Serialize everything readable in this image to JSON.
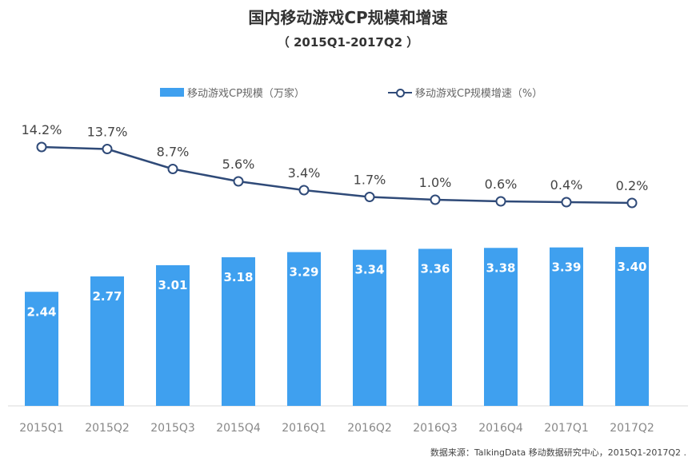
{
  "chart_data": {
    "type": "bar",
    "title": "国内移动游戏CP规模和增速",
    "subtitle": "（ 2015Q1-2017Q2 ）",
    "categories": [
      "2015Q1",
      "2015Q2",
      "2015Q3",
      "2015Q4",
      "2016Q1",
      "2016Q2",
      "2016Q3",
      "2016Q4",
      "2017Q1",
      "2017Q2"
    ],
    "series": [
      {
        "name": "移动游戏CP规模（万家）",
        "kind": "bar",
        "color": "#3fa0ef",
        "values": [
          2.44,
          2.77,
          3.01,
          3.18,
          3.29,
          3.34,
          3.36,
          3.38,
          3.39,
          3.4
        ],
        "labels": [
          "2.44",
          "2.77",
          "3.01",
          "3.18",
          "3.29",
          "3.34",
          "3.36",
          "3.38",
          "3.39",
          "3.40"
        ]
      },
      {
        "name": "移动游戏CP规模增速（%）",
        "kind": "line",
        "color": "#2f4a78",
        "values": [
          14.2,
          13.7,
          8.7,
          5.6,
          3.4,
          1.7,
          1.0,
          0.6,
          0.4,
          0.2
        ],
        "labels": [
          "14.2%",
          "13.7%",
          "8.7%",
          "5.6%",
          "3.4%",
          "1.7%",
          "1.0%",
          "0.6%",
          "0.4%",
          "0.2%"
        ]
      }
    ],
    "bar_ylim": [
      0,
      4.4
    ],
    "line_ylim": [
      -35,
      25
    ],
    "legend_position": "top",
    "grid": false
  },
  "source": "数据来源：TalkingData 移动数据研究中心，2015Q1-2017Q2 ."
}
